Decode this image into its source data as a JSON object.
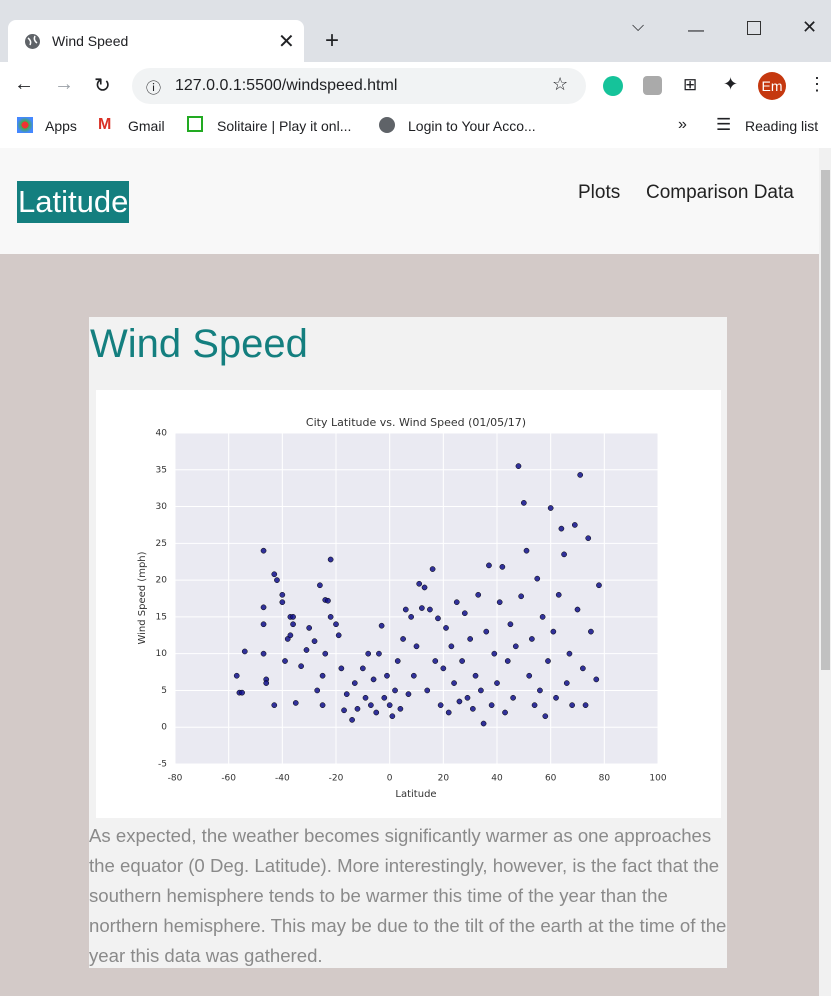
{
  "browser": {
    "tab_title": "Wind Speed",
    "url": "127.0.0.1:5500/windspeed.html",
    "bookmarks": [
      "Apps",
      "Gmail",
      "Solitaire | Play it onl...",
      "Login to Your Acco..."
    ],
    "reading_list": "Reading list",
    "profile": "Em"
  },
  "nav": {
    "brand": "Latitude",
    "links": [
      "Plots",
      "Comparison Data"
    ]
  },
  "heading": "Wind Speed",
  "paragraph": "As expected, the weather becomes significantly warmer as one approaches the equator (0 Deg. Latitude). More interestingly, however, is the fact that the southern hemisphere tends to be warmer this time of the year than the northern hemisphere. This may be due to the tilt of the earth at the time of the year this data was gathered.",
  "chart_data": {
    "type": "scatter",
    "title": "City Latitude vs. Wind Speed (01/05/17)",
    "x_label": "Latitude",
    "y_label": "Wind Speed (mph)",
    "color": "#10108a",
    "grid": true,
    "xlim": [
      -80,
      100
    ],
    "xticks": [
      -80,
      -60,
      -40,
      -20,
      0,
      20,
      40,
      60,
      80,
      100
    ],
    "ylim": [
      -5,
      40
    ],
    "yticks": [
      -5,
      0,
      5,
      10,
      15,
      20,
      25,
      30,
      35,
      40
    ],
    "x": [
      -47,
      -43,
      -42,
      -40,
      -40,
      -37,
      -36,
      -22,
      -24,
      -23,
      -26,
      -54,
      -56,
      -57,
      -47,
      -47,
      -47,
      -46,
      -46,
      -43,
      -39,
      -38,
      -37,
      -36,
      -35,
      -33,
      -31,
      -30,
      -28,
      -27,
      -25,
      -25,
      -24,
      -22,
      -20,
      -19,
      -18,
      -17,
      -16,
      -14,
      -13,
      -12,
      -10,
      -9,
      -8,
      -7,
      -6,
      -5,
      -4,
      -3,
      -2,
      -1,
      0,
      1,
      2,
      3,
      4,
      5,
      6,
      7,
      8,
      9,
      10,
      11,
      12,
      13,
      14,
      15,
      16,
      17,
      18,
      19,
      20,
      21,
      22,
      23,
      24,
      25,
      26,
      27,
      28,
      29,
      30,
      31,
      32,
      33,
      34,
      35,
      36,
      37,
      38,
      39,
      40,
      41,
      42,
      43,
      44,
      45,
      46,
      47,
      48,
      49,
      50,
      51,
      52,
      53,
      54,
      55,
      56,
      57,
      58,
      59,
      60,
      61,
      62,
      63,
      64,
      65,
      66,
      67,
      68,
      69,
      70,
      71,
      72,
      73,
      74,
      75,
      78,
      77,
      -55
    ],
    "values": [
      24,
      20.8,
      20,
      18,
      17,
      15,
      15,
      22.8,
      17.3,
      17.2,
      19.3,
      10.3,
      4.7,
      7,
      16.3,
      14,
      10,
      6.5,
      6,
      3,
      9,
      12,
      12.5,
      14,
      3.3,
      8.3,
      10.5,
      13.5,
      11.7,
      5,
      3,
      7,
      10,
      15,
      14,
      12.5,
      8,
      2.3,
      4.5,
      1,
      6,
      2.5,
      8,
      4,
      10,
      3,
      6.5,
      2,
      10,
      13.8,
      4,
      7,
      3,
      1.5,
      5,
      9,
      2.5,
      12,
      16,
      4.5,
      15,
      7,
      11,
      19.5,
      16.2,
      19,
      5,
      16,
      21.5,
      9,
      14.8,
      3,
      8,
      13.5,
      2,
      11,
      6,
      17,
      3.5,
      9,
      15.5,
      4,
      12,
      2.5,
      7,
      18,
      5,
      0.5,
      13,
      22,
      3,
      10,
      6,
      17,
      21.8,
      2,
      9,
      14,
      4,
      11,
      35.5,
      17.8,
      30.5,
      24,
      7,
      12,
      3,
      20.2,
      5,
      15,
      1.5,
      9,
      29.8,
      13,
      4,
      18,
      27,
      23.5,
      6,
      10,
      3,
      27.5,
      16,
      34.3,
      8,
      3,
      25.7,
      13,
      19.3,
      6.5,
      4.7
    ]
  }
}
